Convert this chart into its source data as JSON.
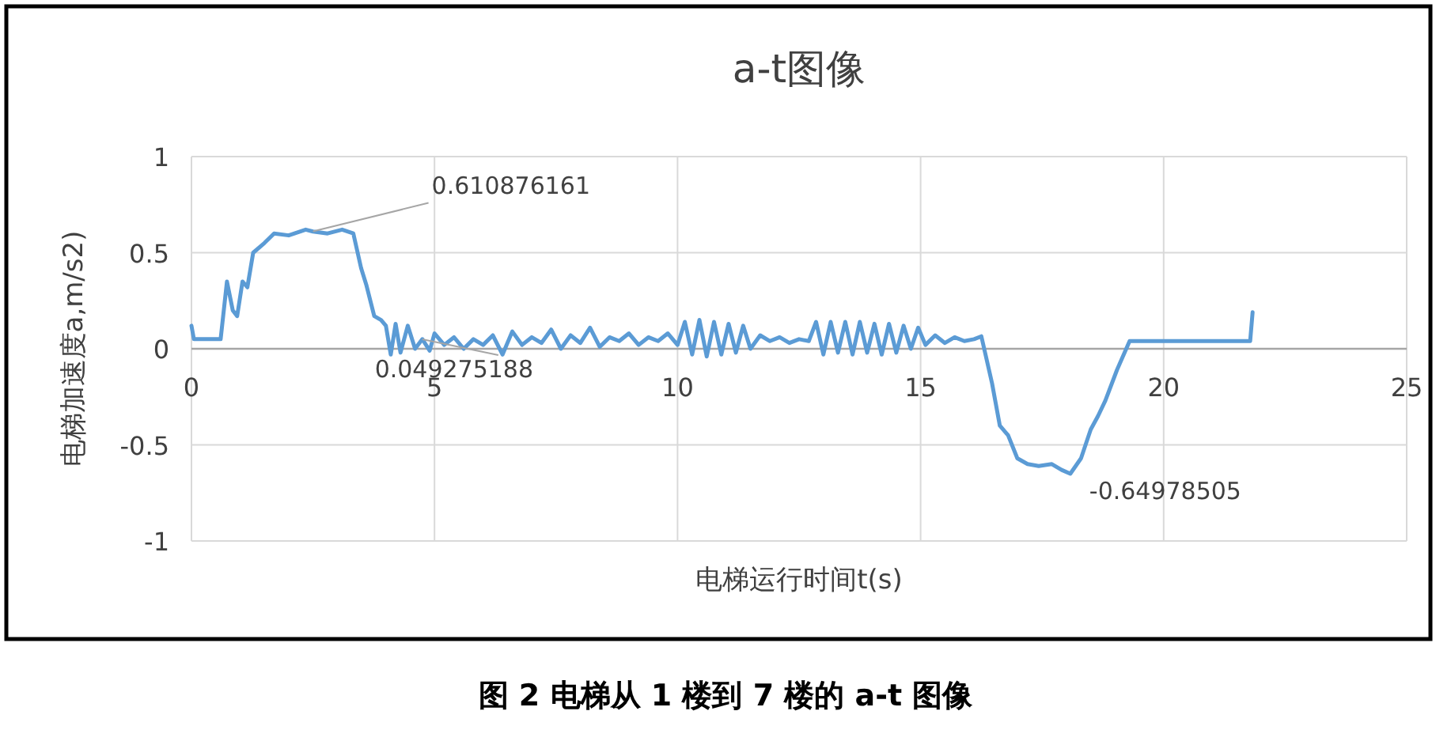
{
  "chart_data": {
    "type": "line",
    "title": "a-t图像",
    "xlabel": "电梯运行时间t(s)",
    "ylabel": "电梯加速度a,m/s2)",
    "x": [
      0,
      0.05,
      0.3,
      0.6,
      0.73,
      0.85,
      0.94,
      1.05,
      1.15,
      1.27,
      1.5,
      1.7,
      2.0,
      2.35,
      2.5,
      2.8,
      3.1,
      3.33,
      3.49,
      3.6,
      3.76,
      3.9,
      4.0,
      4.1,
      4.2,
      4.3,
      4.45,
      4.6,
      4.75,
      4.9,
      5.0,
      5.2,
      5.4,
      5.6,
      5.8,
      6.0,
      6.2,
      6.4,
      6.6,
      6.8,
      7.0,
      7.2,
      7.4,
      7.6,
      7.8,
      8.0,
      8.2,
      8.4,
      8.6,
      8.8,
      9.0,
      9.2,
      9.4,
      9.6,
      9.8,
      10.0,
      10.15,
      10.3,
      10.45,
      10.6,
      10.75,
      10.9,
      11.05,
      11.2,
      11.35,
      11.5,
      11.7,
      11.9,
      12.1,
      12.3,
      12.5,
      12.7,
      12.85,
      13.0,
      13.15,
      13.3,
      13.45,
      13.6,
      13.75,
      13.9,
      14.05,
      14.2,
      14.35,
      14.5,
      14.65,
      14.8,
      14.95,
      15.1,
      15.3,
      15.5,
      15.7,
      15.9,
      16.1,
      16.25,
      16.47,
      16.63,
      16.8,
      16.99,
      17.2,
      17.43,
      17.7,
      17.9,
      18.08,
      18.3,
      18.5,
      18.65,
      18.8,
      19.04,
      19.3,
      19.6,
      20.0,
      20.5,
      21.0,
      21.5,
      21.78,
      21.83
    ],
    "series": [
      {
        "color": "#5b9bd5",
        "values": [
          0.12,
          0.05,
          0.05,
          0.05,
          0.35,
          0.2,
          0.17,
          0.35,
          0.32,
          0.5,
          0.55,
          0.6,
          0.59,
          0.62,
          0.61,
          0.6,
          0.62,
          0.6,
          0.42,
          0.33,
          0.17,
          0.15,
          0.12,
          -0.03,
          0.13,
          -0.02,
          0.12,
          0.0,
          0.05,
          -0.01,
          0.08,
          0.02,
          0.06,
          0.0,
          0.05,
          0.02,
          0.07,
          -0.03,
          0.09,
          0.02,
          0.06,
          0.03,
          0.1,
          0.0,
          0.07,
          0.03,
          0.11,
          0.01,
          0.06,
          0.04,
          0.08,
          0.02,
          0.06,
          0.04,
          0.08,
          0.02,
          0.14,
          -0.03,
          0.15,
          -0.04,
          0.14,
          -0.03,
          0.13,
          -0.02,
          0.12,
          0.0,
          0.07,
          0.04,
          0.06,
          0.03,
          0.05,
          0.04,
          0.14,
          -0.03,
          0.14,
          -0.02,
          0.14,
          -0.03,
          0.14,
          -0.02,
          0.13,
          -0.03,
          0.13,
          -0.02,
          0.12,
          0.0,
          0.11,
          0.02,
          0.07,
          0.03,
          0.06,
          0.04,
          0.05,
          0.065,
          -0.18,
          -0.4,
          -0.45,
          -0.57,
          -0.6,
          -0.61,
          -0.6,
          -0.63,
          -0.65,
          -0.57,
          -0.42,
          -0.35,
          -0.27,
          -0.11,
          0.04,
          0.04,
          0.04,
          0.04,
          0.04,
          0.04,
          0.04,
          0.19
        ]
      }
    ],
    "xlim": [
      0,
      25
    ],
    "ylim": [
      -1,
      1
    ],
    "xticks": [
      0,
      5,
      10,
      15,
      20,
      25
    ],
    "yticks": [
      -1,
      -0.5,
      0,
      0.5,
      1
    ],
    "grid": true,
    "marker": "none",
    "annotations": [
      {
        "text": "0.610876161",
        "x": 2.5,
        "y": 0.610876161
      },
      {
        "text": "0.049275188",
        "x": 4.75,
        "y": 0.049275188
      },
      {
        "text": "-0.64978505",
        "x": 18.08,
        "y": -0.64978505
      },
      "图 2 电梯从 1 楼到 7 楼的 a-t 图像"
    ]
  }
}
